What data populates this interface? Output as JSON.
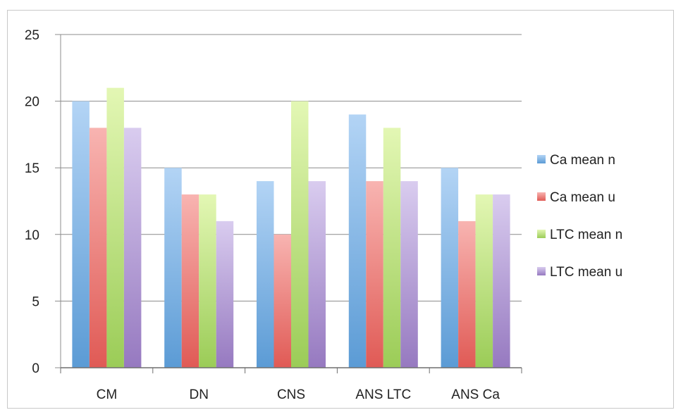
{
  "chart_data": {
    "type": "bar",
    "categories": [
      "CM",
      "DN",
      "CNS",
      "ANS LTC",
      "ANS Ca"
    ],
    "series": [
      {
        "name": "Ca mean n",
        "values": [
          20,
          15,
          14,
          19,
          15
        ],
        "color": "#5b9bd5",
        "color_light": "#b3d4f5"
      },
      {
        "name": "Ca mean u",
        "values": [
          18,
          13,
          10,
          14,
          11
        ],
        "color": "#e05a55",
        "color_light": "#f8b4b1"
      },
      {
        "name": "LTC mean n",
        "values": [
          21,
          13,
          20,
          18,
          13
        ],
        "color": "#9bcc57",
        "color_light": "#e3f7b4"
      },
      {
        "name": "LTC mean u",
        "values": [
          18,
          11,
          14,
          14,
          13
        ],
        "color": "#9679c0",
        "color_light": "#d9ccef"
      }
    ],
    "title": "",
    "xlabel": "",
    "ylabel": "",
    "ylim": [
      0,
      25
    ],
    "yticks": [
      "0",
      "5",
      "10",
      "15",
      "20",
      "25"
    ],
    "grid": true,
    "legend_position": "right"
  }
}
